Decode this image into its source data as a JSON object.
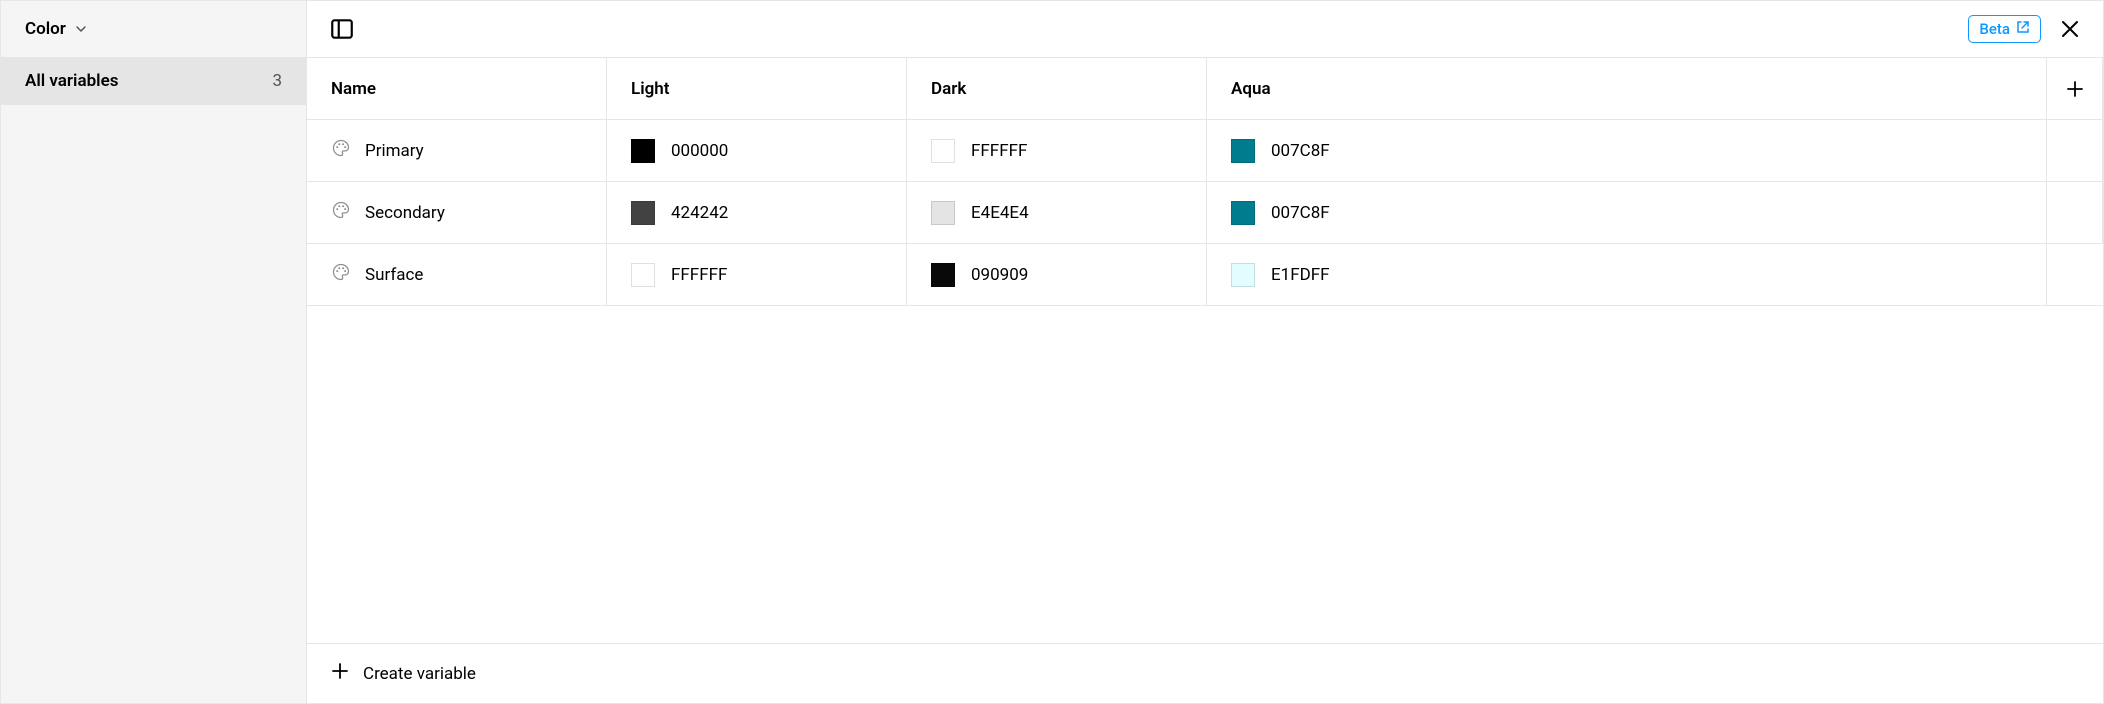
{
  "sidebar": {
    "type_label": "Color",
    "group_label": "All variables",
    "group_count": "3"
  },
  "toolbar": {
    "beta_label": "Beta"
  },
  "columns": {
    "name": "Name",
    "mode0": "Light",
    "mode1": "Dark",
    "mode2": "Aqua"
  },
  "rows": [
    {
      "name": "Primary",
      "values": [
        {
          "hex": "000000",
          "swatch": "#000000"
        },
        {
          "hex": "FFFFFF",
          "swatch": "#FFFFFF"
        },
        {
          "hex": "007C8F",
          "swatch": "#007C8F"
        }
      ]
    },
    {
      "name": "Secondary",
      "values": [
        {
          "hex": "424242",
          "swatch": "#424242"
        },
        {
          "hex": "E4E4E4",
          "swatch": "#E4E4E4"
        },
        {
          "hex": "007C8F",
          "swatch": "#007C8F"
        }
      ]
    },
    {
      "name": "Surface",
      "values": [
        {
          "hex": "FFFFFF",
          "swatch": "#FFFFFF"
        },
        {
          "hex": "090909",
          "swatch": "#090909"
        },
        {
          "hex": "E1FDFF",
          "swatch": "#E1FDFF"
        }
      ]
    }
  ],
  "footer": {
    "create_label": "Create variable"
  }
}
